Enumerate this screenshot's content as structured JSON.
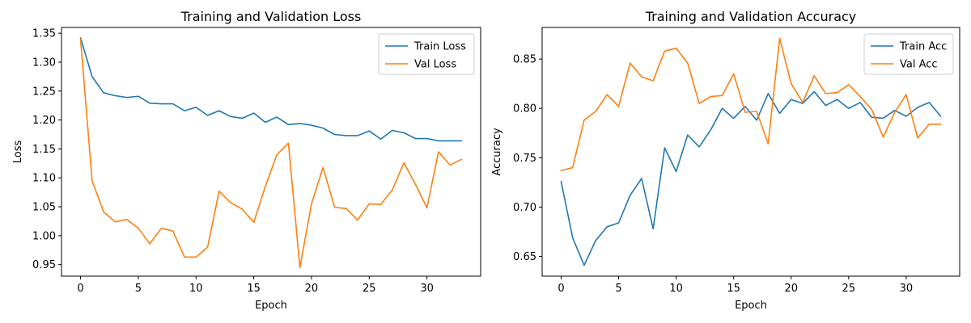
{
  "chart_data": [
    {
      "type": "line",
      "title": "Training and Validation Loss",
      "xlabel": "Epoch",
      "ylabel": "Loss",
      "xlim": [
        -1.65,
        34.65
      ],
      "ylim": [
        0.93,
        1.36
      ],
      "xticks": [
        0,
        5,
        10,
        15,
        20,
        25,
        30
      ],
      "yticks": [
        0.95,
        1.0,
        1.05,
        1.1,
        1.15,
        1.2,
        1.25,
        1.3,
        1.35
      ],
      "ytick_labels": [
        "0.95",
        "1.00",
        "1.05",
        "1.10",
        "1.15",
        "1.20",
        "1.25",
        "1.30",
        "1.35"
      ],
      "grid": false,
      "legend": "top-right",
      "x": [
        0,
        1,
        2,
        3,
        4,
        5,
        6,
        7,
        8,
        9,
        10,
        11,
        12,
        13,
        14,
        15,
        16,
        17,
        18,
        19,
        20,
        21,
        22,
        23,
        24,
        25,
        26,
        27,
        28,
        29,
        30,
        31,
        32,
        33
      ],
      "series": [
        {
          "name": "Train Loss",
          "color": "#1f77b4",
          "values": [
            1.342,
            1.275,
            1.247,
            1.242,
            1.239,
            1.241,
            1.229,
            1.228,
            1.228,
            1.216,
            1.222,
            1.208,
            1.216,
            1.206,
            1.203,
            1.212,
            1.196,
            1.205,
            1.192,
            1.194,
            1.191,
            1.186,
            1.175,
            1.173,
            1.173,
            1.181,
            1.167,
            1.182,
            1.178,
            1.168,
            1.168,
            1.164,
            1.164,
            1.164
          ]
        },
        {
          "name": "Val Loss",
          "color": "#ff7f0e",
          "values": [
            1.34,
            1.095,
            1.041,
            1.024,
            1.028,
            1.013,
            0.986,
            1.013,
            1.008,
            0.963,
            0.963,
            0.98,
            1.077,
            1.057,
            1.046,
            1.023,
            1.085,
            1.14,
            1.16,
            0.945,
            1.055,
            1.118,
            1.049,
            1.047,
            1.027,
            1.055,
            1.054,
            1.079,
            1.126,
            1.089,
            1.048,
            1.145,
            1.122,
            1.132
          ]
        }
      ]
    },
    {
      "type": "line",
      "title": "Training and Validation Accuracy",
      "xlabel": "Epoch",
      "ylabel": "Accuracy",
      "xlim": [
        -1.65,
        34.65
      ],
      "ylim": [
        0.63,
        0.882
      ],
      "xticks": [
        0,
        5,
        10,
        15,
        20,
        25,
        30
      ],
      "yticks": [
        0.65,
        0.7,
        0.75,
        0.8,
        0.85
      ],
      "ytick_labels": [
        "0.65",
        "0.70",
        "0.75",
        "0.80",
        "0.85"
      ],
      "grid": false,
      "legend": "top-right",
      "x": [
        0,
        1,
        2,
        3,
        4,
        5,
        6,
        7,
        8,
        9,
        10,
        11,
        12,
        13,
        14,
        15,
        16,
        17,
        18,
        19,
        20,
        21,
        22,
        23,
        24,
        25,
        26,
        27,
        28,
        29,
        30,
        31,
        32,
        33
      ],
      "series": [
        {
          "name": "Train Acc",
          "color": "#1f77b4",
          "values": [
            0.726,
            0.669,
            0.641,
            0.666,
            0.68,
            0.684,
            0.712,
            0.729,
            0.678,
            0.76,
            0.736,
            0.773,
            0.761,
            0.778,
            0.8,
            0.79,
            0.802,
            0.788,
            0.815,
            0.795,
            0.809,
            0.805,
            0.817,
            0.803,
            0.809,
            0.8,
            0.806,
            0.791,
            0.79,
            0.798,
            0.792,
            0.801,
            0.806,
            0.792
          ]
        },
        {
          "name": "Val Acc",
          "color": "#ff7f0e",
          "values": [
            0.737,
            0.74,
            0.788,
            0.797,
            0.814,
            0.802,
            0.846,
            0.832,
            0.828,
            0.858,
            0.861,
            0.846,
            0.805,
            0.812,
            0.813,
            0.835,
            0.796,
            0.797,
            0.764,
            0.871,
            0.825,
            0.806,
            0.833,
            0.815,
            0.816,
            0.824,
            0.812,
            0.799,
            0.771,
            0.796,
            0.814,
            0.77,
            0.784,
            0.784
          ]
        }
      ]
    }
  ]
}
